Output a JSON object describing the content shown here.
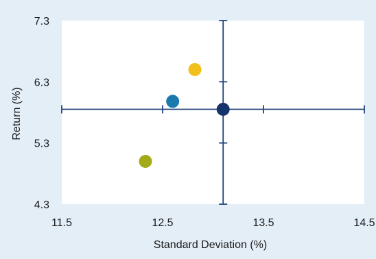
{
  "chart_data": {
    "type": "scatter",
    "xlabel": "Standard Deviation (%)",
    "ylabel": "Return (%)",
    "xlim": [
      11.5,
      14.5
    ],
    "ylim": [
      4.3,
      7.3
    ],
    "x_ticks": [
      "11.5",
      "12.5",
      "13.5",
      "14.5"
    ],
    "y_ticks": [
      "4.3",
      "5.3",
      "6.3",
      "7.3"
    ],
    "grid": false,
    "crosshair": {
      "x": 13.1,
      "y": 5.85
    },
    "points": [
      {
        "x": 12.82,
        "y": 6.5,
        "color": "#f2c01c"
      },
      {
        "x": 12.6,
        "y": 5.98,
        "color": "#1a7aad"
      },
      {
        "x": 13.1,
        "y": 5.85,
        "color": "#16346b"
      },
      {
        "x": 12.33,
        "y": 5.0,
        "color": "#a3ac18"
      }
    ],
    "colors": {
      "background": "#e3eef7",
      "plot_area": "#ffffff",
      "axis_line": "#23447c",
      "text": "#1a1a1a"
    }
  }
}
